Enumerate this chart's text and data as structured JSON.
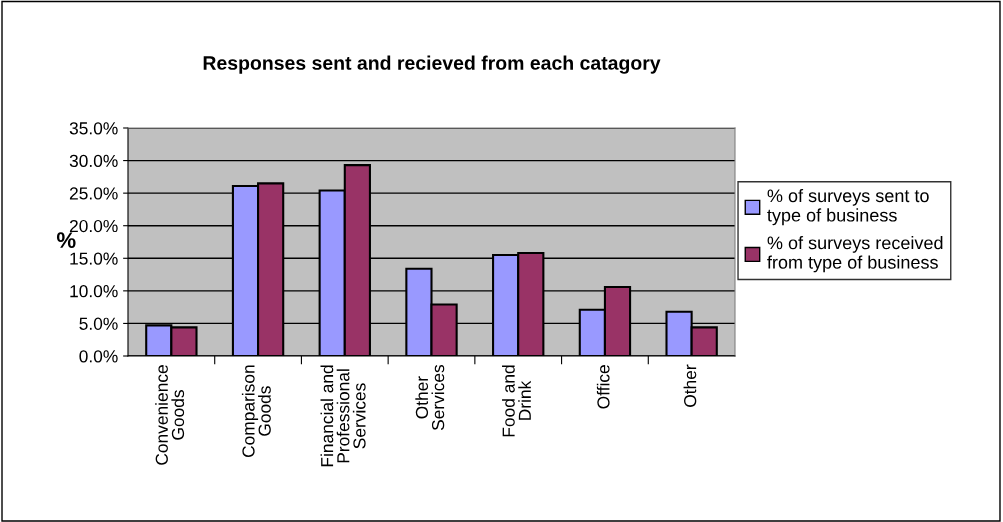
{
  "chart_data": {
    "type": "bar",
    "title": "Responses sent and recieved from each catagory",
    "ylabel": "%",
    "categories": [
      "Convenience\nGoods",
      "Comparison\nGoods",
      "Financial and\nProfessional\nServices",
      "Other\nServices",
      "Food and\nDrink",
      "Office",
      "Other"
    ],
    "series": [
      {
        "name": "% of surveys sent to\ntype of business",
        "color": "#9999ff",
        "values": [
          4.7,
          26.1,
          25.4,
          13.4,
          15.5,
          7.1,
          6.8
        ]
      },
      {
        "name": "% of surveys received\nfrom type of business",
        "color": "#993366",
        "values": [
          4.4,
          26.5,
          29.3,
          7.9,
          15.8,
          10.6,
          4.4
        ]
      }
    ],
    "ylim": [
      0,
      35
    ],
    "yticks": [
      {
        "value": 0,
        "label": "0.0%"
      },
      {
        "value": 5,
        "label": "5.0%"
      },
      {
        "value": 10,
        "label": "10.0%"
      },
      {
        "value": 15,
        "label": "15.0%"
      },
      {
        "value": 20,
        "label": "20.0%"
      },
      {
        "value": 25,
        "label": "25.0%"
      },
      {
        "value": 30,
        "label": "30.0%"
      },
      {
        "value": 35,
        "label": "35.0%"
      }
    ],
    "grid": "y",
    "legend": "right"
  }
}
